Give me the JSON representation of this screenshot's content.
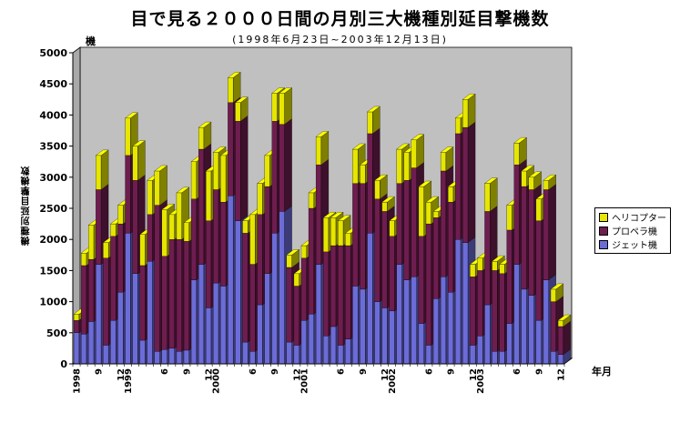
{
  "chart_data": {
    "type": "bar",
    "stacked": true,
    "three_d": true,
    "title": "目で見る２０００日間の月別三大機種別延目撃機数",
    "subtitle": "(1998年6月23日~2003年12月13日)",
    "ylabel": "機種別延目撃機数",
    "y_unit": "機",
    "x_unit": "年月",
    "ylim": [
      0,
      5000
    ],
    "yticks": [
      "0",
      "500",
      "1000",
      "1500",
      "2000",
      "2500",
      "3000",
      "3500",
      "4000",
      "4500",
      "5000"
    ],
    "x_ticks": [
      {
        "index": 0,
        "label": "1998"
      },
      {
        "index": 3,
        "label": "9"
      },
      {
        "index": 6,
        "label": "12"
      },
      {
        "index": 7,
        "label": "1999"
      },
      {
        "index": 12,
        "label": "6"
      },
      {
        "index": 15,
        "label": "9"
      },
      {
        "index": 18,
        "label": "12"
      },
      {
        "index": 19,
        "label": "2000"
      },
      {
        "index": 24,
        "label": "6"
      },
      {
        "index": 27,
        "label": "9"
      },
      {
        "index": 30,
        "label": "12"
      },
      {
        "index": 31,
        "label": "2001"
      },
      {
        "index": 36,
        "label": "6"
      },
      {
        "index": 39,
        "label": "9"
      },
      {
        "index": 42,
        "label": "12"
      },
      {
        "index": 43,
        "label": "2002"
      },
      {
        "index": 48,
        "label": "6"
      },
      {
        "index": 51,
        "label": "9"
      },
      {
        "index": 54,
        "label": "12"
      },
      {
        "index": 55,
        "label": "2003"
      },
      {
        "index": 60,
        "label": "6"
      },
      {
        "index": 63,
        "label": "9"
      },
      {
        "index": 66,
        "label": "12"
      }
    ],
    "grid": false,
    "legend_position": "right",
    "plot_background": "#c0c0c0",
    "series": [
      {
        "name": "ジェット機",
        "color": "#6c6cd8",
        "values": [
          500,
          480,
          680,
          1600,
          300,
          700,
          1150,
          2100,
          1450,
          380,
          1650,
          200,
          230,
          250,
          200,
          220,
          1350,
          1600,
          900,
          1300,
          1250,
          2700,
          2300,
          350,
          200,
          950,
          1450,
          2100,
          2450,
          350,
          300,
          700,
          800,
          1600,
          450,
          600,
          300,
          400,
          1250,
          1200,
          2100,
          1000,
          900,
          850,
          1600,
          1350,
          1400,
          650,
          300,
          1050,
          1400,
          1150,
          2000,
          1950,
          300,
          450,
          950,
          200,
          200,
          650,
          1600,
          1200,
          1100,
          700,
          1350,
          200,
          150
        ]
      },
      {
        "name": "プロペラ機",
        "color": "#6e1d4f",
        "values": [
          200,
          1100,
          1000,
          1200,
          1400,
          1350,
          1100,
          1250,
          1500,
          1200,
          750,
          2350,
          1500,
          1750,
          1800,
          1750,
          1300,
          1850,
          1400,
          1500,
          1350,
          1500,
          1600,
          1750,
          1400,
          1450,
          1400,
          1800,
          1400,
          1200,
          950,
          1000,
          1700,
          1600,
          1350,
          1300,
          1600,
          1500,
          1650,
          1700,
          1600,
          1650,
          1550,
          1200,
          1300,
          1600,
          1750,
          1400,
          1950,
          1300,
          1700,
          1450,
          1700,
          1850,
          1100,
          1050,
          1500,
          1300,
          1250,
          1500,
          1600,
          1650,
          1700,
          1600,
          1450,
          800,
          450
        ]
      },
      {
        "name": "ヘリコプター",
        "color": "#e6e600",
        "values": [
          100,
          200,
          550,
          550,
          250,
          200,
          300,
          600,
          550,
          500,
          550,
          550,
          750,
          400,
          750,
          300,
          600,
          350,
          800,
          600,
          750,
          400,
          300,
          200,
          800,
          500,
          500,
          450,
          500,
          200,
          200,
          200,
          250,
          450,
          550,
          450,
          400,
          200,
          550,
          300,
          350,
          300,
          150,
          250,
          550,
          450,
          450,
          800,
          350,
          100,
          300,
          250,
          250,
          450,
          200,
          200,
          450,
          150,
          150,
          400,
          350,
          250,
          200,
          350,
          150,
          200,
          100
        ]
      }
    ]
  }
}
